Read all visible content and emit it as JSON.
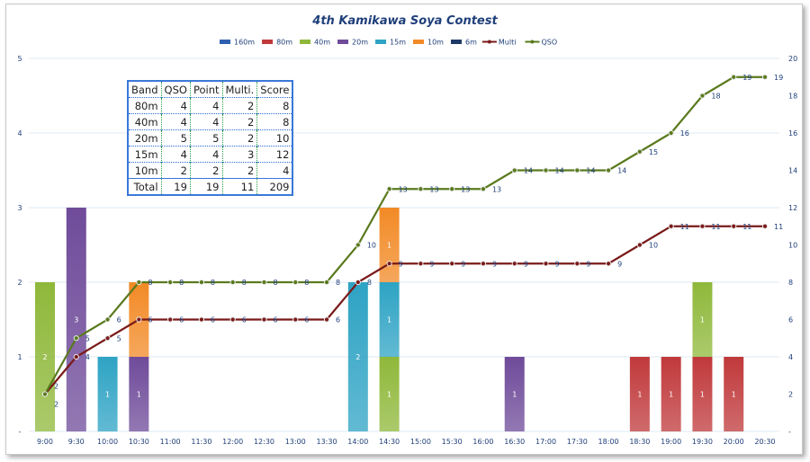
{
  "chart_data": {
    "type": "bar",
    "title": "4th Kamikawa Soya Contest",
    "categories": [
      "9:00",
      "9:30",
      "10:00",
      "10:30",
      "11:00",
      "11:30",
      "12:00",
      "12:30",
      "13:00",
      "13:30",
      "14:00",
      "14:30",
      "15:00",
      "15:30",
      "16:00",
      "16:30",
      "17:00",
      "17:30",
      "18:00",
      "18:30",
      "19:00",
      "19:30",
      "20:00",
      "20:30"
    ],
    "ylim": [
      0,
      5
    ],
    "y_ticks": [
      "-",
      "1",
      "2",
      "3",
      "4",
      "5"
    ],
    "y2lim": [
      0,
      20
    ],
    "y2_ticks": [
      "-",
      "2",
      "4",
      "6",
      "8",
      "10",
      "12",
      "14",
      "16",
      "18",
      "20"
    ],
    "legend_position": "top",
    "bar_series": [
      {
        "name": "160m",
        "color": "#2f5fb0",
        "values": [
          0,
          0,
          0,
          0,
          0,
          0,
          0,
          0,
          0,
          0,
          0,
          0,
          0,
          0,
          0,
          0,
          0,
          0,
          0,
          0,
          0,
          0,
          0,
          0
        ]
      },
      {
        "name": "80m",
        "color": "#c0393b",
        "values": [
          0,
          0,
          0,
          0,
          0,
          0,
          0,
          0,
          0,
          0,
          0,
          0,
          0,
          0,
          0,
          0,
          0,
          0,
          0,
          1,
          1,
          1,
          1,
          0
        ]
      },
      {
        "name": "40m",
        "color": "#8fb83a",
        "values": [
          2,
          0,
          0,
          0,
          0,
          0,
          0,
          0,
          0,
          0,
          0,
          1,
          0,
          0,
          0,
          0,
          0,
          0,
          0,
          0,
          0,
          1,
          0,
          0
        ]
      },
      {
        "name": "20m",
        "color": "#6f4b9a",
        "values": [
          0,
          3,
          0,
          1,
          0,
          0,
          0,
          0,
          0,
          0,
          0,
          0,
          0,
          0,
          0,
          1,
          0,
          0,
          0,
          0,
          0,
          0,
          0,
          0
        ]
      },
      {
        "name": "15m",
        "color": "#2ea3c4",
        "values": [
          0,
          0,
          1,
          0,
          0,
          0,
          0,
          0,
          0,
          0,
          2,
          1,
          0,
          0,
          0,
          0,
          0,
          0,
          0,
          0,
          0,
          0,
          0,
          0
        ]
      },
      {
        "name": "10m",
        "color": "#f28a26",
        "values": [
          0,
          0,
          0,
          1,
          0,
          0,
          0,
          0,
          0,
          0,
          0,
          1,
          0,
          0,
          0,
          0,
          0,
          0,
          0,
          0,
          0,
          0,
          0,
          0
        ]
      },
      {
        "name": "6m",
        "color": "#1f3a66",
        "values": [
          0,
          0,
          0,
          0,
          0,
          0,
          0,
          0,
          0,
          0,
          0,
          0,
          0,
          0,
          0,
          0,
          0,
          0,
          0,
          0,
          0,
          0,
          0,
          0
        ]
      }
    ],
    "line_series": [
      {
        "name": "Multi",
        "color": "#7a1a1a",
        "axis": "right",
        "values": [
          2,
          4,
          5,
          6,
          6,
          6,
          6,
          6,
          6,
          6,
          8,
          9,
          9,
          9,
          9,
          9,
          9,
          9,
          9,
          10,
          11,
          11,
          11,
          11
        ]
      },
      {
        "name": "QSO",
        "color": "#5a7a1e",
        "axis": "right",
        "values": [
          2,
          5,
          6,
          8,
          8,
          8,
          8,
          8,
          8,
          8,
          10,
          13,
          13,
          13,
          13,
          14,
          14,
          14,
          14,
          15,
          16,
          18,
          19,
          19
        ]
      }
    ]
  },
  "table": {
    "header": [
      "Band",
      "QSO",
      "Point",
      "Multi.",
      "Score"
    ],
    "rows": [
      [
        "80m",
        "4",
        "4",
        "2",
        "8"
      ],
      [
        "40m",
        "4",
        "4",
        "2",
        "8"
      ],
      [
        "20m",
        "5",
        "5",
        "2",
        "10"
      ],
      [
        "15m",
        "4",
        "4",
        "3",
        "12"
      ],
      [
        "10m",
        "2",
        "2",
        "2",
        "4"
      ]
    ],
    "total": [
      "Total",
      "19",
      "19",
      "11",
      "209"
    ]
  }
}
